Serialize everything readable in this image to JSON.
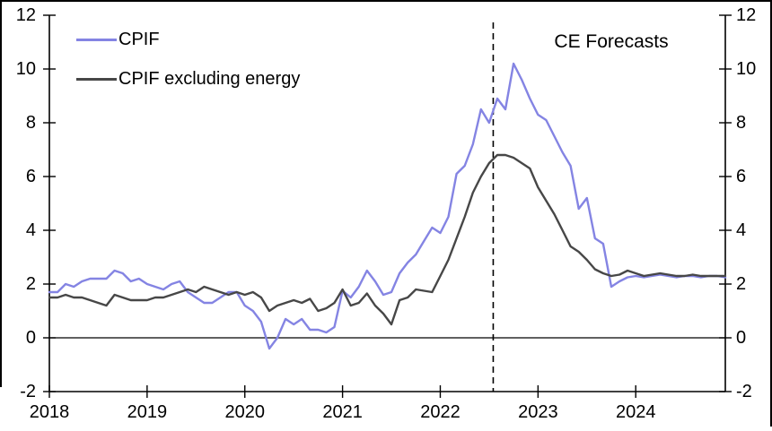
{
  "chart_data": {
    "type": "line",
    "title": "",
    "annotation": "CE Forecasts",
    "x_unit": "month",
    "x_start": "2018-01",
    "x_end": "2024-12",
    "x_tick_labels": [
      "2018",
      "2019",
      "2020",
      "2021",
      "2022",
      "2023",
      "2024"
    ],
    "y_ticks": [
      -2,
      0,
      2,
      4,
      6,
      8,
      10,
      12
    ],
    "ylim": [
      -2,
      12
    ],
    "dual_y_axis": true,
    "zero_line": true,
    "grid": "off",
    "legend_position": "top-left",
    "forecast_divider": {
      "style": "dashed",
      "month_index": 54.5,
      "label": "CE Forecasts"
    },
    "axis_color": "#000000",
    "series": [
      {
        "name": "CPIF",
        "color": "#8484e3",
        "values": [
          1.7,
          1.7,
          2.0,
          1.9,
          2.1,
          2.2,
          2.2,
          2.2,
          2.5,
          2.4,
          2.1,
          2.2,
          2.0,
          1.9,
          1.8,
          2.0,
          2.1,
          1.7,
          1.5,
          1.3,
          1.3,
          1.5,
          1.7,
          1.7,
          1.2,
          1.0,
          0.6,
          -0.4,
          0.0,
          0.7,
          0.5,
          0.7,
          0.3,
          0.3,
          0.2,
          0.4,
          1.75,
          1.5,
          1.9,
          2.5,
          2.1,
          1.6,
          1.7,
          2.4,
          2.8,
          3.1,
          3.6,
          4.1,
          3.9,
          4.5,
          6.1,
          6.4,
          7.2,
          8.5,
          8.0,
          8.9,
          8.5,
          10.2,
          9.6,
          8.9,
          8.3,
          8.1,
          7.5,
          6.9,
          6.4,
          4.8,
          5.2,
          3.7,
          3.5,
          1.9,
          2.1,
          2.25,
          2.3,
          2.25,
          2.3,
          2.35,
          2.3,
          2.25,
          2.3,
          2.3,
          2.25,
          2.3,
          2.3,
          2.25
        ]
      },
      {
        "name": "CPIF excluding energy",
        "color": "#474747",
        "values": [
          1.5,
          1.5,
          1.6,
          1.5,
          1.5,
          1.4,
          1.3,
          1.2,
          1.6,
          1.5,
          1.4,
          1.4,
          1.4,
          1.5,
          1.5,
          1.6,
          1.7,
          1.8,
          1.7,
          1.9,
          1.8,
          1.7,
          1.6,
          1.7,
          1.6,
          1.7,
          1.5,
          1.0,
          1.2,
          1.3,
          1.4,
          1.3,
          1.45,
          1.0,
          1.1,
          1.3,
          1.8,
          1.2,
          1.3,
          1.65,
          1.2,
          0.9,
          0.5,
          1.4,
          1.5,
          1.8,
          1.75,
          1.7,
          2.3,
          2.9,
          3.7,
          4.5,
          5.4,
          6.0,
          6.5,
          6.8,
          6.8,
          6.7,
          6.5,
          6.3,
          5.6,
          5.1,
          4.6,
          4.0,
          3.4,
          3.2,
          2.9,
          2.55,
          2.4,
          2.3,
          2.35,
          2.5,
          2.4,
          2.3,
          2.35,
          2.4,
          2.35,
          2.3,
          2.3,
          2.35,
          2.3,
          2.3,
          2.3,
          2.3
        ]
      }
    ]
  }
}
